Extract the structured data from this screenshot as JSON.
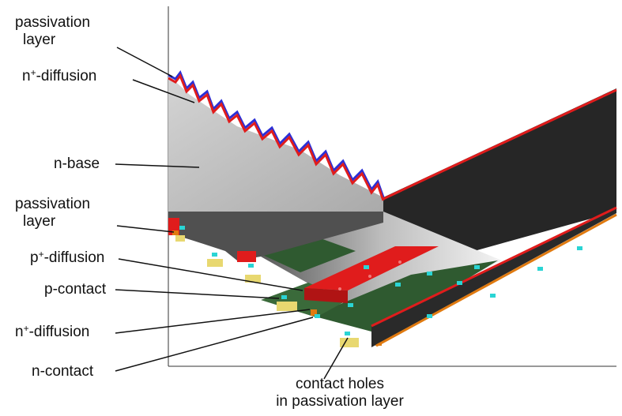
{
  "labels": {
    "passivation_top_line1": "passivation",
    "passivation_top_line2": "layer",
    "n_plus_top_prefix": "n",
    "n_plus_top_sup": "+",
    "n_plus_top_suffix": "-diffusion",
    "n_base": "n-base",
    "passivation_mid_line1": "passivation",
    "passivation_mid_line2": "layer",
    "p_plus_prefix": "p",
    "p_plus_sup": "+",
    "p_plus_suffix": "-diffusion",
    "p_contact": "p-contact",
    "n_plus_bottom_prefix": "n",
    "n_plus_bottom_sup": "+",
    "n_plus_bottom_suffix": "-diffusion",
    "n_contact": "n-contact",
    "contact_holes_line1": "contact holes",
    "contact_holes_line2": "in passivation layer"
  },
  "colors": {
    "texture": "#3a3f8c",
    "n_base": "#c8c8c8",
    "dark_side": "#2a2a2a",
    "p_diffusion": "#e0201c",
    "n_diffusion_strip": "#2f5b2f",
    "contact_hole": "#2ad4d4",
    "n_contact": "#e8d870",
    "leader_line": "#111111"
  }
}
